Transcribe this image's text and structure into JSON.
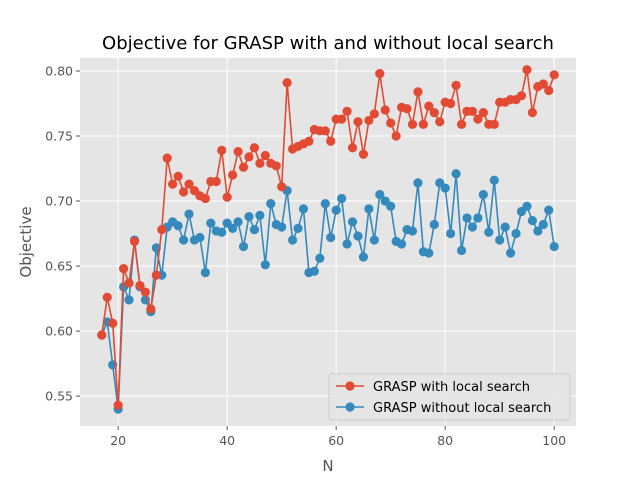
{
  "chart_data": {
    "type": "line",
    "title": "Objective for GRASP with and without local search",
    "xlabel": "N",
    "ylabel": "Objective",
    "xlim": [
      13,
      104
    ],
    "ylim": [
      0.527,
      0.81
    ],
    "xticks": [
      20,
      40,
      60,
      80,
      100
    ],
    "yticks": [
      0.55,
      0.6,
      0.65,
      0.7,
      0.75,
      0.8
    ],
    "grid": true,
    "legend_position": "lower-right",
    "x": [
      17,
      18,
      19,
      20,
      21,
      22,
      23,
      24,
      25,
      26,
      27,
      28,
      29,
      30,
      31,
      32,
      33,
      34,
      35,
      36,
      37,
      38,
      39,
      40,
      41,
      42,
      43,
      44,
      45,
      46,
      47,
      48,
      49,
      50,
      51,
      52,
      53,
      54,
      55,
      56,
      57,
      58,
      59,
      60,
      61,
      62,
      63,
      64,
      65,
      66,
      67,
      68,
      69,
      70,
      71,
      72,
      73,
      74,
      75,
      76,
      77,
      78,
      79,
      80,
      81,
      82,
      83,
      84,
      85,
      86,
      87,
      88,
      89,
      90,
      91,
      92,
      93,
      94,
      95,
      96,
      97,
      98,
      99,
      100
    ],
    "series": [
      {
        "name": "GRASP with local search",
        "color": "#E24A33",
        "values": [
          0.597,
          0.626,
          0.606,
          0.543,
          0.648,
          0.637,
          0.669,
          0.635,
          0.63,
          0.617,
          0.643,
          0.678,
          0.733,
          0.713,
          0.719,
          0.707,
          0.713,
          0.708,
          0.704,
          0.702,
          0.715,
          0.715,
          0.739,
          0.703,
          0.72,
          0.738,
          0.726,
          0.734,
          0.741,
          0.729,
          0.735,
          0.729,
          0.727,
          0.711,
          0.791,
          0.74,
          0.742,
          0.744,
          0.746,
          0.755,
          0.754,
          0.754,
          0.746,
          0.763,
          0.763,
          0.769,
          0.741,
          0.761,
          0.736,
          0.762,
          0.767,
          0.798,
          0.77,
          0.76,
          0.75,
          0.772,
          0.771,
          0.759,
          0.784,
          0.759,
          0.773,
          0.768,
          0.761,
          0.776,
          0.775,
          0.789,
          0.759,
          0.769,
          0.769,
          0.763,
          0.768,
          0.759,
          0.759,
          0.776,
          0.776,
          0.778,
          0.778,
          0.781,
          0.801,
          0.768,
          0.788,
          0.79,
          0.785,
          0.797
        ]
      },
      {
        "name": "GRASP without local search",
        "color": "#348ABD",
        "values": [
          0.597,
          0.607,
          0.574,
          0.54,
          0.634,
          0.624,
          0.67,
          0.634,
          0.624,
          0.615,
          0.664,
          0.643,
          0.68,
          0.684,
          0.681,
          0.67,
          0.69,
          0.67,
          0.672,
          0.645,
          0.683,
          0.677,
          0.676,
          0.683,
          0.679,
          0.684,
          0.665,
          0.688,
          0.678,
          0.689,
          0.651,
          0.698,
          0.682,
          0.68,
          0.708,
          0.67,
          0.679,
          0.694,
          0.645,
          0.646,
          0.656,
          0.698,
          0.672,
          0.693,
          0.702,
          0.667,
          0.684,
          0.673,
          0.657,
          0.694,
          0.67,
          0.705,
          0.7,
          0.696,
          0.669,
          0.667,
          0.678,
          0.677,
          0.714,
          0.661,
          0.66,
          0.682,
          0.714,
          0.71,
          0.675,
          0.721,
          0.662,
          0.687,
          0.68,
          0.687,
          0.705,
          0.676,
          0.716,
          0.67,
          0.68,
          0.66,
          0.675,
          0.692,
          0.696,
          0.685,
          0.677,
          0.682,
          0.693,
          0.665
        ]
      }
    ]
  }
}
